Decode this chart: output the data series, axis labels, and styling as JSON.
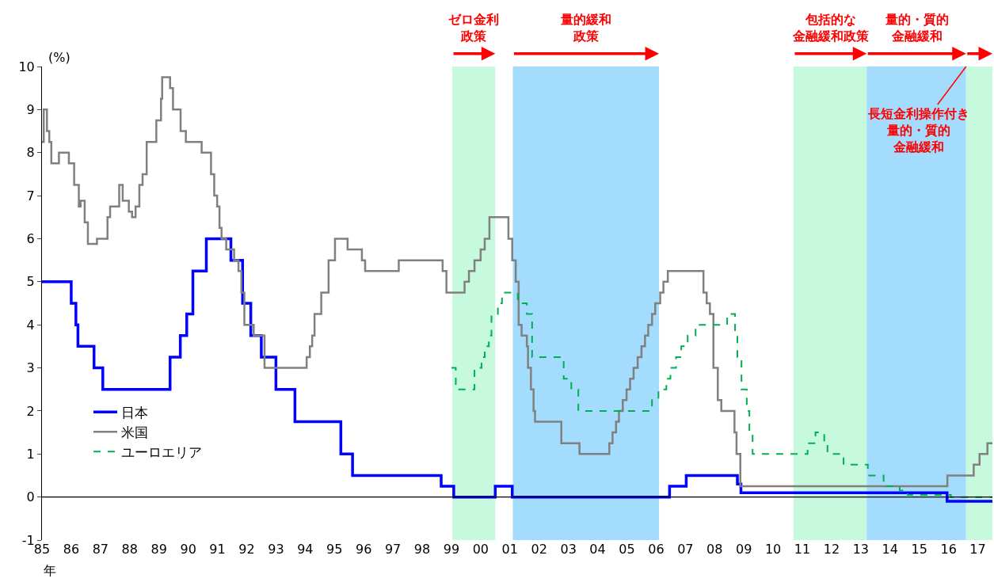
{
  "chart_data": {
    "type": "step",
    "xlabel": "年",
    "ylabel": "(%)",
    "xlim": [
      1985,
      2017.5
    ],
    "ylim": [
      -1,
      10
    ],
    "xticks": [
      {
        "value": 1985,
        "label": "85"
      },
      {
        "value": 1986,
        "label": "86"
      },
      {
        "value": 1987,
        "label": "87"
      },
      {
        "value": 1988,
        "label": "88"
      },
      {
        "value": 1989,
        "label": "89"
      },
      {
        "value": 1990,
        "label": "90"
      },
      {
        "value": 1991,
        "label": "91"
      },
      {
        "value": 1992,
        "label": "92"
      },
      {
        "value": 1993,
        "label": "93"
      },
      {
        "value": 1994,
        "label": "94"
      },
      {
        "value": 1995,
        "label": "95"
      },
      {
        "value": 1996,
        "label": "96"
      },
      {
        "value": 1997,
        "label": "97"
      },
      {
        "value": 1998,
        "label": "98"
      },
      {
        "value": 1999,
        "label": "99"
      },
      {
        "value": 2000,
        "label": "00"
      },
      {
        "value": 2001,
        "label": "01"
      },
      {
        "value": 2002,
        "label": "02"
      },
      {
        "value": 2003,
        "label": "03"
      },
      {
        "value": 2004,
        "label": "04"
      },
      {
        "value": 2005,
        "label": "05"
      },
      {
        "value": 2006,
        "label": "06"
      },
      {
        "value": 2007,
        "label": "07"
      },
      {
        "value": 2008,
        "label": "08"
      },
      {
        "value": 2009,
        "label": "09"
      },
      {
        "value": 2010,
        "label": "10"
      },
      {
        "value": 2011,
        "label": "11"
      },
      {
        "value": 2012,
        "label": "12"
      },
      {
        "value": 2013,
        "label": "13"
      },
      {
        "value": 2014,
        "label": "14"
      },
      {
        "value": 2015,
        "label": "15"
      },
      {
        "value": 2016,
        "label": "16"
      },
      {
        "value": 2017,
        "label": "17"
      }
    ],
    "yticks": [
      -1,
      0,
      1,
      2,
      3,
      4,
      5,
      6,
      7,
      8,
      9,
      10
    ],
    "grid": false,
    "legend": "bottom left",
    "series": [
      {
        "name": "日本",
        "color": "#0000ff",
        "line_style": "solid",
        "x": [
          1985.0,
          1986.0,
          1986.16,
          1986.23,
          1986.78,
          1987.08,
          1989.38,
          1989.73,
          1989.95,
          1990.16,
          1990.62,
          1991.46,
          1991.86,
          1992.14,
          1992.5,
          1993.0,
          1993.65,
          1995.22,
          1995.62,
          1998.65,
          1999.08,
          2000.5,
          2001.08,
          2006.46,
          2007.03,
          2008.78,
          2008.9,
          2015.95,
          2017.5
        ],
        "values": [
          5.0,
          4.5,
          4.0,
          3.5,
          3.0,
          2.5,
          3.25,
          3.75,
          4.25,
          5.25,
          6.0,
          5.5,
          4.5,
          3.75,
          3.25,
          2.5,
          1.75,
          1.0,
          0.5,
          0.25,
          0.0,
          0.25,
          0.0,
          0.25,
          0.5,
          0.3,
          0.1,
          -0.1,
          -0.1
        ]
      },
      {
        "name": "米国",
        "color": "#808080",
        "line_style": "solid",
        "x": [
          1985.0,
          1985.06,
          1985.17,
          1985.25,
          1985.32,
          1985.58,
          1985.92,
          1986.1,
          1986.26,
          1986.32,
          1986.46,
          1986.57,
          1986.88,
          1987.24,
          1987.33,
          1987.64,
          1987.76,
          1987.97,
          1988.08,
          1988.2,
          1988.33,
          1988.44,
          1988.58,
          1988.91,
          1989.07,
          1989.11,
          1989.38,
          1989.48,
          1989.74,
          1989.92,
          1990.46,
          1990.78,
          1990.89,
          1990.99,
          1991.07,
          1991.14,
          1991.3,
          1991.57,
          1991.72,
          1991.82,
          1991.92,
          1992.24,
          1992.61,
          1994.05,
          1994.16,
          1994.24,
          1994.32,
          1994.55,
          1994.8,
          1995.02,
          1995.45,
          1995.94,
          1996.05,
          1997.2,
          1998.7,
          1998.83,
          1999.45,
          1999.6,
          1999.79,
          2000.0,
          2000.14,
          2000.3,
          2000.95,
          2001.08,
          2001.2,
          2001.3,
          2001.4,
          2001.58,
          2001.62,
          2001.72,
          2001.81,
          2001.86,
          2002.76,
          2003.38,
          2004.4,
          2004.51,
          2004.63,
          2004.73,
          2004.86,
          2004.99,
          2005.11,
          2005.23,
          2005.37,
          2005.5,
          2005.62,
          2005.73,
          2005.86,
          2005.97,
          2006.14,
          2006.25,
          2006.4,
          2007.62,
          2007.73,
          2007.84,
          2007.96,
          2008.11,
          2008.23,
          2008.68,
          2008.75,
          2008.88,
          2015.96,
          2016.86,
          2017.06,
          2017.33,
          2017.5
        ],
        "values": [
          8.25,
          9.0,
          8.5,
          8.25,
          7.75,
          8.0,
          7.75,
          7.25,
          6.75,
          6.88,
          6.38,
          5.88,
          6.0,
          6.5,
          6.75,
          7.25,
          6.88,
          6.63,
          6.5,
          6.75,
          7.25,
          7.5,
          8.25,
          8.75,
          9.25,
          9.75,
          9.5,
          9.0,
          8.5,
          8.25,
          8.0,
          7.5,
          7.0,
          6.75,
          6.25,
          6.0,
          5.75,
          5.5,
          5.25,
          4.75,
          4.0,
          3.75,
          3.0,
          3.25,
          3.5,
          3.75,
          4.25,
          4.75,
          5.5,
          6.0,
          5.75,
          5.5,
          5.25,
          5.5,
          5.25,
          4.75,
          5.0,
          5.25,
          5.5,
          5.75,
          6.0,
          6.5,
          6.0,
          5.5,
          5.0,
          4.0,
          3.75,
          3.5,
          3.0,
          2.5,
          2.0,
          1.75,
          1.25,
          1.0,
          1.25,
          1.5,
          1.75,
          2.0,
          2.25,
          2.5,
          2.75,
          3.0,
          3.25,
          3.5,
          3.75,
          4.0,
          4.25,
          4.5,
          4.75,
          5.0,
          5.25,
          4.75,
          4.5,
          4.25,
          3.0,
          2.25,
          2.0,
          1.5,
          1.0,
          0.25,
          0.5,
          0.75,
          1.0,
          1.25,
          1.25
        ]
      },
      {
        "name": "ユーロエリア",
        "color": "#00b050",
        "line_style": "dashed",
        "x": [
          1999.0,
          1999.15,
          1999.79,
          2000.03,
          2000.14,
          2000.28,
          2000.37,
          2000.59,
          2000.73,
          2001.27,
          2001.58,
          2001.76,
          2002.84,
          2003.1,
          2003.34,
          2005.86,
          2006.08,
          2006.35,
          2006.49,
          2006.68,
          2006.86,
          2007.08,
          2007.35,
          2008.43,
          2008.7,
          2008.78,
          2008.92,
          2009.1,
          2009.19,
          2009.3,
          2011.18,
          2011.45,
          2011.75,
          2011.86,
          2012.41,
          2013.24,
          2013.78,
          2014.33,
          2014.6,
          2016.08,
          2017.5
        ],
        "values": [
          3.0,
          2.5,
          3.0,
          3.25,
          3.5,
          3.75,
          4.25,
          4.5,
          4.75,
          4.5,
          4.25,
          3.25,
          2.75,
          2.5,
          2.0,
          2.25,
          2.5,
          2.75,
          3.0,
          3.25,
          3.5,
          3.75,
          4.0,
          4.25,
          3.75,
          3.25,
          2.5,
          2.0,
          1.5,
          1.0,
          1.25,
          1.5,
          1.25,
          1.0,
          0.75,
          0.5,
          0.25,
          0.15,
          0.05,
          0.0,
          0.0
        ]
      }
    ],
    "ref_lines": [
      {
        "axis": "y",
        "value": 0,
        "color": "#000000"
      }
    ],
    "bands": [
      {
        "axis": "x",
        "from": 1999.03,
        "to": 2000.5,
        "color": "#c6f9de",
        "label": [
          "ゼロ金利",
          "政策"
        ]
      },
      {
        "axis": "x",
        "from": 2001.1,
        "to": 2006.1,
        "color": "#a3dcfc",
        "label": [
          "量的緩和",
          "政策"
        ]
      },
      {
        "axis": "x",
        "from": 2010.7,
        "to": 2013.2,
        "color": "#c6f9de",
        "label": [
          "包括的な",
          "金融緩和政策"
        ]
      },
      {
        "axis": "x",
        "from": 2013.2,
        "to": 2016.6,
        "color": "#a3dcfc",
        "label": [
          "量的・質的",
          "金融緩和"
        ]
      },
      {
        "axis": "x",
        "from": 2016.6,
        "to": 2017.5,
        "color": "#c6f9de",
        "label": [
          "長短金利操作付き",
          "量的・質的",
          "金融緩和"
        ]
      }
    ]
  }
}
